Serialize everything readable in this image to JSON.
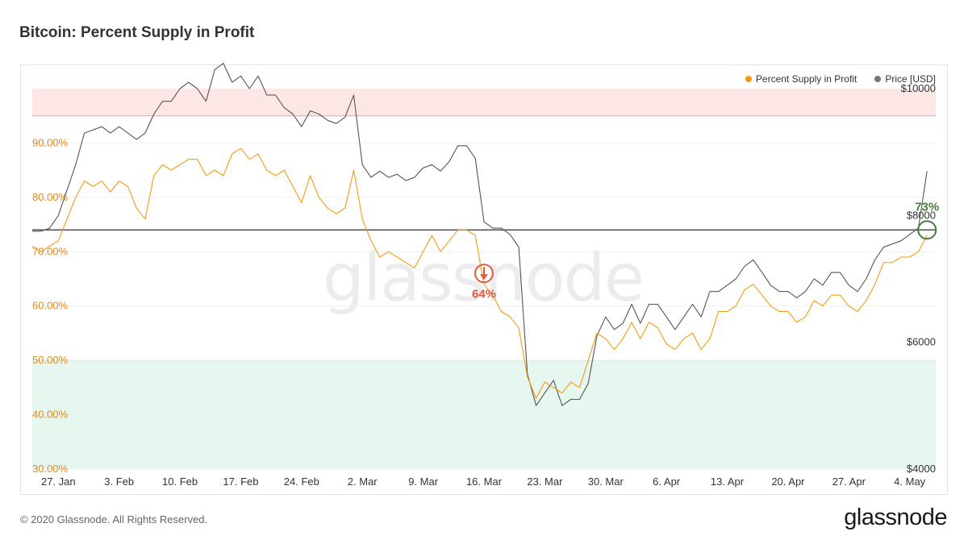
{
  "header": {
    "title": "Bitcoin: Percent Supply in Profit"
  },
  "footer": {
    "copyright": "© 2020 Glassnode. All Rights Reserved.",
    "brand": "glassnode"
  },
  "watermark": "glassnode",
  "chart_data": {
    "type": "line",
    "title": "Bitcoin: Percent Supply in Profit",
    "x_tick_labels": [
      "27. Jan",
      "3. Feb",
      "10. Feb",
      "17. Feb",
      "24. Feb",
      "2. Mar",
      "9. Mar",
      "16. Mar",
      "23. Mar",
      "30. Mar",
      "6. Apr",
      "13. Apr",
      "20. Apr",
      "27. Apr",
      "4. May"
    ],
    "x_range_days": [
      -3,
      101
    ],
    "left_axis": {
      "ticks": [
        30,
        40,
        50,
        60,
        70,
        80,
        90
      ],
      "labels": [
        "30.00%",
        "40.00%",
        "50.00%",
        "60.00%",
        "70.00%",
        "80.00%",
        "90.00%"
      ],
      "range": [
        30,
        100
      ],
      "color": "#e0891c"
    },
    "right_axis": {
      "ticks": [
        4000,
        6000,
        8000,
        10000
      ],
      "labels": [
        "$4000",
        "$6000",
        "$8000",
        "$10000"
      ],
      "range": [
        4000,
        10000
      ]
    },
    "bands": [
      {
        "name": "upper",
        "from": 95,
        "to": 100,
        "color": "#fde6e6",
        "edge": "#e8a0a0"
      },
      {
        "name": "lower",
        "from": 30,
        "to": 50,
        "color": "#e6f7ef",
        "edge": "#7fcfb4"
      }
    ],
    "reference_line": {
      "value": 74,
      "color": "#555555"
    },
    "legend_position": "top-right",
    "series": [
      {
        "name": "Percent Supply in Profit",
        "color": "#f39c12",
        "axis": "left",
        "points": [
          [
            -3,
            71
          ],
          [
            -2,
            70
          ],
          [
            -1,
            71
          ],
          [
            0,
            72
          ],
          [
            1,
            76
          ],
          [
            2,
            80
          ],
          [
            3,
            83
          ],
          [
            4,
            82
          ],
          [
            5,
            83
          ],
          [
            6,
            81
          ],
          [
            7,
            83
          ],
          [
            8,
            82
          ],
          [
            9,
            78
          ],
          [
            10,
            76
          ],
          [
            11,
            84
          ],
          [
            12,
            86
          ],
          [
            13,
            85
          ],
          [
            14,
            86
          ],
          [
            15,
            87
          ],
          [
            16,
            87
          ],
          [
            17,
            84
          ],
          [
            18,
            85
          ],
          [
            19,
            84
          ],
          [
            20,
            88
          ],
          [
            21,
            89
          ],
          [
            22,
            87
          ],
          [
            23,
            88
          ],
          [
            24,
            85
          ],
          [
            25,
            84
          ],
          [
            26,
            85
          ],
          [
            27,
            82
          ],
          [
            28,
            79
          ],
          [
            29,
            84
          ],
          [
            30,
            80
          ],
          [
            31,
            78
          ],
          [
            32,
            77
          ],
          [
            33,
            78
          ],
          [
            34,
            85
          ],
          [
            35,
            76
          ],
          [
            36,
            72
          ],
          [
            37,
            69
          ],
          [
            38,
            70
          ],
          [
            39,
            69
          ],
          [
            40,
            68
          ],
          [
            41,
            67
          ],
          [
            42,
            70
          ],
          [
            43,
            73
          ],
          [
            44,
            70
          ],
          [
            45,
            72
          ],
          [
            46,
            74
          ],
          [
            47,
            74
          ],
          [
            48,
            73
          ],
          [
            49,
            64
          ],
          [
            50,
            62
          ],
          [
            51,
            59
          ],
          [
            52,
            58
          ],
          [
            53,
            56
          ],
          [
            54,
            47
          ],
          [
            55,
            43
          ],
          [
            56,
            46
          ],
          [
            57,
            45
          ],
          [
            58,
            44
          ],
          [
            59,
            46
          ],
          [
            60,
            45
          ],
          [
            61,
            50
          ],
          [
            62,
            55
          ],
          [
            63,
            54
          ],
          [
            64,
            52
          ],
          [
            65,
            54
          ],
          [
            66,
            57
          ],
          [
            67,
            54
          ],
          [
            68,
            57
          ],
          [
            69,
            56
          ],
          [
            70,
            53
          ],
          [
            71,
            52
          ],
          [
            72,
            54
          ],
          [
            73,
            55
          ],
          [
            74,
            52
          ],
          [
            75,
            54
          ],
          [
            76,
            59
          ],
          [
            77,
            59
          ],
          [
            78,
            60
          ],
          [
            79,
            63
          ],
          [
            80,
            64
          ],
          [
            81,
            62
          ],
          [
            82,
            60
          ],
          [
            83,
            59
          ],
          [
            84,
            59
          ],
          [
            85,
            57
          ],
          [
            86,
            58
          ],
          [
            87,
            61
          ],
          [
            88,
            60
          ],
          [
            89,
            62
          ],
          [
            90,
            62
          ],
          [
            91,
            60
          ],
          [
            92,
            59
          ],
          [
            93,
            61
          ],
          [
            94,
            64
          ],
          [
            95,
            68
          ],
          [
            96,
            68
          ],
          [
            97,
            69
          ],
          [
            98,
            69
          ],
          [
            99,
            70
          ],
          [
            100,
            73
          ]
        ]
      },
      {
        "name": "Price [USD]",
        "color": "#555555",
        "axis": "right",
        "points": [
          [
            -3,
            7750
          ],
          [
            -2,
            7750
          ],
          [
            -1,
            7800
          ],
          [
            0,
            8000
          ],
          [
            1,
            8400
          ],
          [
            2,
            8800
          ],
          [
            3,
            9300
          ],
          [
            4,
            9350
          ],
          [
            5,
            9400
          ],
          [
            6,
            9300
          ],
          [
            7,
            9400
          ],
          [
            8,
            9300
          ],
          [
            9,
            9200
          ],
          [
            10,
            9300
          ],
          [
            11,
            9600
          ],
          [
            12,
            9800
          ],
          [
            13,
            9800
          ],
          [
            14,
            10000
          ],
          [
            15,
            10100
          ],
          [
            16,
            10000
          ],
          [
            17,
            9800
          ],
          [
            18,
            10300
          ],
          [
            19,
            10400
          ],
          [
            20,
            10100
          ],
          [
            21,
            10200
          ],
          [
            22,
            10000
          ],
          [
            23,
            10200
          ],
          [
            24,
            9900
          ],
          [
            25,
            9900
          ],
          [
            26,
            9700
          ],
          [
            27,
            9600
          ],
          [
            28,
            9400
          ],
          [
            29,
            9650
          ],
          [
            30,
            9600
          ],
          [
            31,
            9500
          ],
          [
            32,
            9450
          ],
          [
            33,
            9550
          ],
          [
            34,
            9900
          ],
          [
            35,
            8800
          ],
          [
            36,
            8600
          ],
          [
            37,
            8700
          ],
          [
            38,
            8600
          ],
          [
            39,
            8650
          ],
          [
            40,
            8550
          ],
          [
            41,
            8600
          ],
          [
            42,
            8750
          ],
          [
            43,
            8800
          ],
          [
            44,
            8700
          ],
          [
            45,
            8850
          ],
          [
            46,
            9100
          ],
          [
            47,
            9100
          ],
          [
            48,
            8900
          ],
          [
            49,
            7900
          ],
          [
            50,
            7800
          ],
          [
            51,
            7800
          ],
          [
            52,
            7700
          ],
          [
            53,
            7500
          ],
          [
            54,
            5500
          ],
          [
            55,
            5000
          ],
          [
            56,
            5200
          ],
          [
            57,
            5400
          ],
          [
            58,
            5000
          ],
          [
            59,
            5100
          ],
          [
            60,
            5100
          ],
          [
            61,
            5350
          ],
          [
            62,
            6100
          ],
          [
            63,
            6400
          ],
          [
            64,
            6200
          ],
          [
            65,
            6300
          ],
          [
            66,
            6600
          ],
          [
            67,
            6300
          ],
          [
            68,
            6600
          ],
          [
            69,
            6600
          ],
          [
            70,
            6400
          ],
          [
            71,
            6200
          ],
          [
            72,
            6400
          ],
          [
            73,
            6600
          ],
          [
            74,
            6400
          ],
          [
            75,
            6800
          ],
          [
            76,
            6800
          ],
          [
            77,
            6900
          ],
          [
            78,
            7000
          ],
          [
            79,
            7200
          ],
          [
            80,
            7300
          ],
          [
            81,
            7100
          ],
          [
            82,
            6900
          ],
          [
            83,
            6800
          ],
          [
            84,
            6800
          ],
          [
            85,
            6700
          ],
          [
            86,
            6800
          ],
          [
            87,
            7000
          ],
          [
            88,
            6900
          ],
          [
            89,
            7100
          ],
          [
            90,
            7100
          ],
          [
            91,
            6900
          ],
          [
            92,
            6800
          ],
          [
            93,
            7000
          ],
          [
            94,
            7300
          ],
          [
            95,
            7500
          ],
          [
            96,
            7550
          ],
          [
            97,
            7600
          ],
          [
            98,
            7700
          ],
          [
            99,
            7800
          ],
          [
            100,
            8700
          ]
        ]
      }
    ],
    "annotations": [
      {
        "label": "64%",
        "day": 49,
        "value": 66,
        "color": "#e05a3f",
        "marker": "down-arrow-circle"
      },
      {
        "label": "73%",
        "day": 100,
        "value": 74,
        "color": "#4a7a3a",
        "marker": "circle"
      }
    ]
  }
}
